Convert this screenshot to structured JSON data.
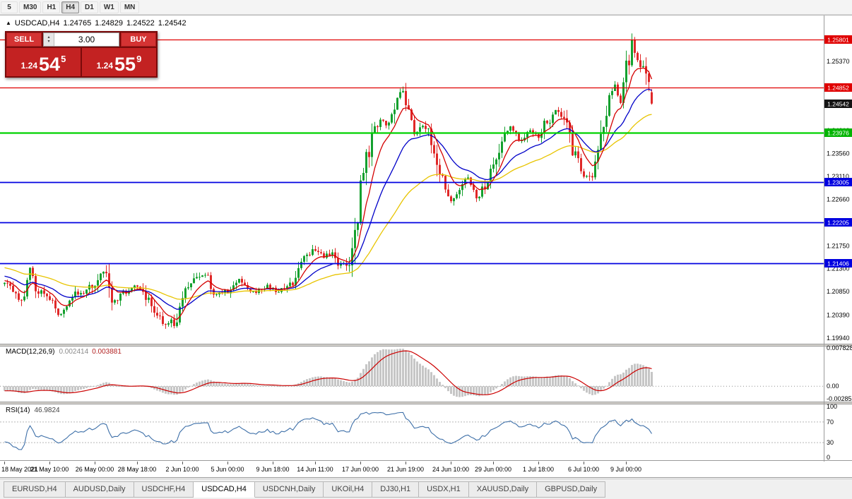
{
  "toolbar": {
    "timeframes": [
      {
        "label": "5",
        "active": false
      },
      {
        "label": "M30",
        "active": false
      },
      {
        "label": "H1",
        "active": false
      },
      {
        "label": "H4",
        "active": true
      },
      {
        "label": "D1",
        "active": false
      },
      {
        "label": "W1",
        "active": false
      },
      {
        "label": "MN",
        "active": false
      }
    ]
  },
  "chart_title": {
    "marker": "▲",
    "symbol": "USDCAD,H4",
    "open": "1.24765",
    "high": "1.24829",
    "low": "1.24522",
    "close": "1.24542"
  },
  "trade_panel": {
    "sell_label": "SELL",
    "buy_label": "BUY",
    "volume": "3.00",
    "sell_price": {
      "base": "1.24",
      "big": "54",
      "sup": "5"
    },
    "buy_price": {
      "base": "1.24",
      "big": "55",
      "sup": "9"
    }
  },
  "tabs": [
    {
      "label": "EURUSD,H4",
      "active": false
    },
    {
      "label": "AUDUSD,Daily",
      "active": false
    },
    {
      "label": "USDCHF,H4",
      "active": false
    },
    {
      "label": "USDCAD,H4",
      "active": true
    },
    {
      "label": "USDCNH,Daily",
      "active": false
    },
    {
      "label": "UKOil,H4",
      "active": false
    },
    {
      "label": "DJ30,H1",
      "active": false
    },
    {
      "label": "USDX,H1",
      "active": false
    },
    {
      "label": "XAUUSD,Daily",
      "active": false
    },
    {
      "label": "GBPUSD,Daily",
      "active": false
    }
  ],
  "chart_data": {
    "type": "candlestick",
    "symbol": "USDCAD",
    "timeframe": "H4",
    "n_bars": 230,
    "y_range": [
      1.19827,
      1.26272
    ],
    "keyframes": [
      [
        0,
        1.21
      ],
      [
        6,
        1.207
      ],
      [
        9,
        1.213
      ],
      [
        12,
        1.2085
      ],
      [
        17,
        1.2065
      ],
      [
        20,
        1.204
      ],
      [
        26,
        1.2082
      ],
      [
        31,
        1.2095
      ],
      [
        35,
        1.213
      ],
      [
        39,
        1.2065
      ],
      [
        43,
        1.2085
      ],
      [
        48,
        1.2095
      ],
      [
        53,
        1.2045
      ],
      [
        57,
        1.2018
      ],
      [
        60,
        1.2025
      ],
      [
        64,
        1.2095
      ],
      [
        71,
        1.212
      ],
      [
        74,
        1.2082
      ],
      [
        79,
        1.2085
      ],
      [
        83,
        1.2108
      ],
      [
        88,
        1.2085
      ],
      [
        92,
        1.2095
      ],
      [
        97,
        1.2088
      ],
      [
        102,
        1.2105
      ],
      [
        107,
        1.2155
      ],
      [
        110,
        1.217
      ],
      [
        113,
        1.215
      ],
      [
        116,
        1.2165
      ],
      [
        119,
        1.2135
      ],
      [
        122,
        1.215
      ],
      [
        124,
        1.22
      ],
      [
        126,
        1.228
      ],
      [
        128,
        1.234
      ],
      [
        131,
        1.24
      ],
      [
        133,
        1.2425
      ],
      [
        136,
        1.241
      ],
      [
        138,
        1.2455
      ],
      [
        141,
        1.2478
      ],
      [
        143,
        1.244
      ],
      [
        145,
        1.2395
      ],
      [
        148,
        1.2415
      ],
      [
        150,
        1.24
      ],
      [
        153,
        1.234
      ],
      [
        155,
        1.23
      ],
      [
        158,
        1.2262
      ],
      [
        161,
        1.2288
      ],
      [
        164,
        1.231
      ],
      [
        167,
        1.227
      ],
      [
        170,
        1.2295
      ],
      [
        173,
        1.233
      ],
      [
        176,
        1.2385
      ],
      [
        179,
        1.2405
      ],
      [
        183,
        1.238
      ],
      [
        186,
        1.24
      ],
      [
        189,
        1.239
      ],
      [
        192,
        1.242
      ],
      [
        196,
        1.244
      ],
      [
        199,
        1.2405
      ],
      [
        202,
        1.235
      ],
      [
        205,
        1.2308
      ],
      [
        208,
        1.232
      ],
      [
        211,
        1.239
      ],
      [
        214,
        1.2465
      ],
      [
        216,
        1.249
      ],
      [
        218,
        1.246
      ],
      [
        221,
        1.2545
      ],
      [
        222,
        1.2575
      ],
      [
        224,
        1.254
      ],
      [
        226,
        1.252
      ],
      [
        228,
        1.249
      ],
      [
        229,
        1.2454
      ]
    ],
    "last_candle": [
      1.24765,
      1.24829,
      1.24522,
      1.24542
    ],
    "peak_high": 1.2592,
    "trough_low": 1.2012,
    "ma_periods": {
      "fast": 8,
      "mid": 21,
      "slow": 50
    },
    "hlines": [
      {
        "price": 1.25801,
        "color": "#e00000",
        "width": 1.2
      },
      {
        "price": 1.24852,
        "color": "#e00000",
        "width": 1.2
      },
      {
        "price": 1.23976,
        "color": "#00d200",
        "width": 2.2
      },
      {
        "price": 1.23005,
        "color": "#0000e0",
        "width": 1.8
      },
      {
        "price": 1.22205,
        "color": "#0000e0",
        "width": 1.8
      },
      {
        "price": 1.21406,
        "color": "#0000e0",
        "width": 1.8
      }
    ],
    "price_axis": {
      "plain": [
        "1.25370",
        "1.24010",
        "1.23560",
        "1.23110",
        "1.22660",
        "1.21750",
        "1.21300",
        "1.20850",
        "1.20390",
        "1.19940"
      ],
      "boxed": [
        {
          "text": "1.25801",
          "price": 1.25801,
          "color": "#e00000"
        },
        {
          "text": "1.24852",
          "price": 1.24852,
          "color": "#e00000"
        },
        {
          "text": "1.24542",
          "price": 1.24542,
          "color": "#141414"
        },
        {
          "text": "1.23976",
          "price": 1.23976,
          "color": "#00b400"
        },
        {
          "text": "1.23005",
          "price": 1.23005,
          "color": "#0000e0"
        },
        {
          "text": "1.22205",
          "price": 1.22205,
          "color": "#0000e0"
        },
        {
          "text": "1.21406",
          "price": 1.21406,
          "color": "#0000e0"
        }
      ]
    },
    "time_axis": [
      {
        "bar": 0,
        "text": "18 May 2021"
      },
      {
        "bar": 16,
        "text": "21 May 10:00"
      },
      {
        "bar": 32,
        "text": "26 May 00:00"
      },
      {
        "bar": 47,
        "text": "28 May 18:00"
      },
      {
        "bar": 63,
        "text": "2 Jun 10:00"
      },
      {
        "bar": 79,
        "text": "5 Jun 00:00"
      },
      {
        "bar": 95,
        "text": "9 Jun 18:00"
      },
      {
        "bar": 110,
        "text": "14 Jun 11:00"
      },
      {
        "bar": 126,
        "text": "17 Jun 00:00"
      },
      {
        "bar": 142,
        "text": "21 Jun 19:00"
      },
      {
        "bar": 158,
        "text": "24 Jun 10:00"
      },
      {
        "bar": 173,
        "text": "29 Jun 00:00"
      },
      {
        "bar": 189,
        "text": "1 Jul 18:00"
      },
      {
        "bar": 205,
        "text": "6 Jul 10:00"
      },
      {
        "bar": 220,
        "text": "9 Jul 00:00"
      }
    ],
    "macd": {
      "label": "MACD(12,26,9)",
      "value_main": "0.002414",
      "value_signal": "0.003881",
      "params": [
        12,
        26,
        9
      ],
      "range": [
        -0.00285,
        0.007828
      ],
      "axis": [
        "0.007828",
        "0.00",
        "-0.00285"
      ]
    },
    "rsi": {
      "label": "RSI(14)",
      "value": "46.9824",
      "period": 14,
      "levels": [
        70,
        30
      ],
      "axis_labels": [
        "100",
        "70",
        "30",
        "0"
      ]
    },
    "colors": {
      "bull": "#14a02e",
      "bear": "#e02828",
      "ma_fast": "#d40000",
      "ma_mid": "#0000c8",
      "ma_slow": "#e8c400",
      "macd_hist": "#c6c6c6",
      "macd_signal": "#cc0000",
      "rsi": "#3d6fa8"
    }
  }
}
